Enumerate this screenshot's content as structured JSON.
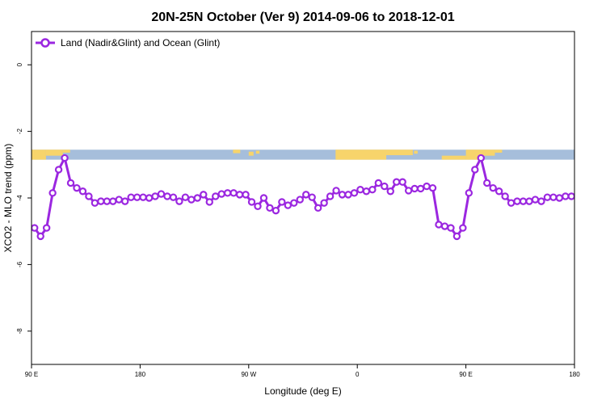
{
  "chart_data": {
    "type": "line",
    "title": "20N-25N October (Ver 9)   2014-09-06 to 2018-12-01",
    "xlabel": "Longitude (deg E)",
    "ylabel": "XCO2 - MLO trend (ppm)",
    "xlim": [
      90,
      540
    ],
    "ylim": [
      -9,
      1
    ],
    "x_ticks": [
      {
        "value": 90,
        "label": "90 E"
      },
      {
        "value": 180,
        "label": "180"
      },
      {
        "value": 270,
        "label": "90 W"
      },
      {
        "value": 360,
        "label": "0"
      },
      {
        "value": 450,
        "label": "90 E"
      },
      {
        "value": 540,
        "label": "180"
      }
    ],
    "y_ticks": [
      {
        "value": 0,
        "label": "0"
      },
      {
        "value": -2,
        "label": "-2"
      },
      {
        "value": -4,
        "label": "-4"
      },
      {
        "value": -6,
        "label": "-6"
      },
      {
        "value": -8,
        "label": "-8"
      }
    ],
    "legend_position": "top-left",
    "map_band": {
      "y_top": -2.55,
      "y_bottom": -2.85,
      "ocean_color": "#a6bedb",
      "land_color": "#f7d46b"
    },
    "series": [
      {
        "name": "Land (Nadir&Glint) and Ocean (Glint)",
        "color": "#9b27e0",
        "x": [
          92.5,
          97.5,
          102.5,
          107.5,
          112.5,
          117.5,
          122.5,
          127.5,
          132.5,
          137.5,
          142.5,
          147.5,
          152.5,
          157.5,
          162.5,
          167.5,
          172.5,
          177.5,
          182.5,
          187.5,
          192.5,
          197.5,
          202.5,
          207.5,
          212.5,
          217.5,
          222.5,
          227.5,
          232.5,
          237.5,
          242.5,
          247.5,
          252.5,
          257.5,
          262.5,
          267.5,
          272.5,
          277.5,
          282.5,
          287.5,
          292.5,
          297.5,
          302.5,
          307.5,
          312.5,
          317.5,
          322.5,
          327.5,
          332.5,
          337.5,
          342.5,
          347.5,
          352.5,
          357.5,
          362.5,
          367.5,
          372.5,
          377.5,
          382.5,
          387.5,
          392.5,
          397.5,
          402.5,
          407.5,
          412.5,
          417.5,
          422.5,
          427.5,
          432.5,
          437.5,
          442.5,
          447.5,
          452.5,
          457.5,
          462.5,
          467.5,
          472.5,
          477.5,
          482.5,
          487.5,
          492.5,
          497.5,
          502.5,
          507.5,
          512.5,
          517.5,
          522.5,
          527.5,
          532.5,
          537.5
        ],
        "y": [
          -4.9,
          -5.15,
          -4.9,
          -3.85,
          -3.15,
          -2.8,
          -3.55,
          -3.7,
          -3.8,
          -3.95,
          -4.15,
          -4.1,
          -4.1,
          -4.1,
          -4.05,
          -4.1,
          -3.98,
          -3.98,
          -3.98,
          -4.0,
          -3.95,
          -3.88,
          -3.95,
          -3.98,
          -4.1,
          -3.98,
          -4.05,
          -4.0,
          -3.9,
          -4.12,
          -3.95,
          -3.88,
          -3.85,
          -3.85,
          -3.9,
          -3.9,
          -4.12,
          -4.25,
          -4.0,
          -4.3,
          -4.38,
          -4.12,
          -4.22,
          -4.15,
          -4.05,
          -3.9,
          -3.98,
          -4.3,
          -4.15,
          -3.95,
          -3.78,
          -3.9,
          -3.9,
          -3.85,
          -3.75,
          -3.8,
          -3.75,
          -3.55,
          -3.65,
          -3.8,
          -3.52,
          -3.52,
          -3.78,
          -3.72,
          -3.72,
          -3.65,
          -3.7,
          -4.8,
          -4.85,
          -4.9,
          -5.15,
          -4.9,
          -3.85,
          -3.15,
          -2.8,
          -3.55,
          -3.7,
          -3.8,
          -3.95,
          -4.15,
          -4.1,
          -4.1,
          -4.1,
          -4.05,
          -4.1,
          -3.98,
          -3.98,
          -4.0,
          -3.95,
          -3.95
        ]
      }
    ]
  }
}
